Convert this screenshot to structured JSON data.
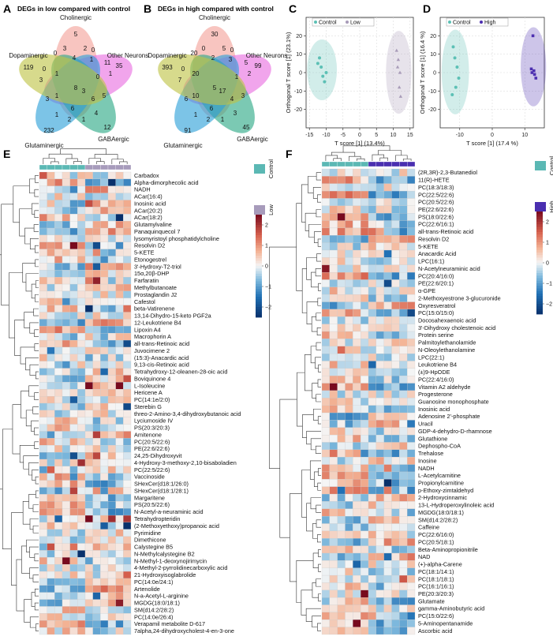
{
  "panels": {
    "A": {
      "label": "A",
      "title": "DEGs in low compared with control"
    },
    "B": {
      "label": "B",
      "title": "DEGs in high compared with control"
    },
    "C": {
      "label": "C"
    },
    "D": {
      "label": "D"
    },
    "E": {
      "label": "E"
    },
    "F": {
      "label": "F"
    }
  },
  "venn_sets": [
    "Cholinergic",
    "Other Neurons",
    "GABAergic",
    "Glutaminergic",
    "Dopaminergic"
  ],
  "venn_colors": [
    "#f4a19a",
    "#e86ee0",
    "#2aa884",
    "#2c9fd8",
    "#bfc445"
  ],
  "venn_A_numbers": [
    "5",
    "35",
    "12",
    "232",
    "119",
    "2",
    "0",
    "11",
    "1",
    "5",
    "4",
    "1",
    "2",
    "1",
    "3",
    "3",
    "0",
    "0",
    "3",
    "4",
    "1",
    "0",
    "6",
    "6",
    "8",
    "1",
    "1",
    "3"
  ],
  "venn_B_numbers": [
    "30",
    "99",
    "45",
    "91",
    "393",
    "5",
    "0",
    "5",
    "2",
    "3",
    "3",
    "1",
    "2",
    "1",
    "6",
    "7",
    "0",
    "20",
    "0",
    "2",
    "3",
    "1",
    "4",
    "6",
    "5",
    "10",
    "20",
    "17"
  ],
  "chart_data": [
    {
      "type": "scatter",
      "panel": "C",
      "xlabel": "T score [1] (13.4%)",
      "ylabel": "Orthogonal T score [1] (23.1%)",
      "xlim": [
        -16,
        16
      ],
      "ylim": [
        -30,
        30
      ],
      "xticks": [
        -15,
        -10,
        -5,
        0,
        5,
        10,
        15
      ],
      "yticks": [
        -20,
        -10,
        0,
        10,
        20
      ],
      "legend": [
        "Control",
        "Low"
      ],
      "series": [
        {
          "name": "Control",
          "color": "#5cc0b5",
          "x": [
            -12,
            -11.5,
            -11,
            -10.5,
            -10,
            -12.5
          ],
          "y": [
            8,
            3,
            -2,
            -5,
            0,
            5
          ]
        },
        {
          "name": "Low",
          "color": "#a89bb8",
          "x": [
            11,
            11.5,
            12,
            11.8,
            12.2,
            11.3
          ],
          "y": [
            12,
            7,
            0,
            -8,
            -13,
            3
          ]
        }
      ]
    },
    {
      "type": "scatter",
      "panel": "D",
      "xlabel": "T score [1] (17.4 %)",
      "ylabel": "Orthogonal T score [1] (16.4 %)",
      "xlim": [
        -16,
        16
      ],
      "ylim": [
        -30,
        30
      ],
      "xticks": [
        -10,
        0,
        10
      ],
      "yticks": [
        -20,
        -10,
        0,
        10,
        20
      ],
      "legend": [
        "Control",
        "High"
      ],
      "series": [
        {
          "name": "Control",
          "color": "#5cc0b5",
          "x": [
            -12,
            -11.5,
            -10.8,
            -10.3,
            -11.2,
            -12.3
          ],
          "y": [
            14,
            8,
            3,
            -3,
            -8,
            -12
          ]
        },
        {
          "name": "High",
          "color": "#4d2fb0",
          "x": [
            12.5,
            12,
            13,
            12.2,
            13.4,
            12.8
          ],
          "y": [
            20,
            2,
            -1,
            0,
            -3,
            1
          ]
        }
      ]
    },
    {
      "type": "heatmap",
      "panel": "E",
      "groups": [
        "Control",
        "Low"
      ],
      "group_colors": [
        "#5bb8b4",
        "#a79bbb"
      ],
      "columns_per_group": 6,
      "colorbar": {
        "min": -2.5,
        "max": 2.5,
        "ticks": [
          "2",
          "1",
          "0",
          "-1",
          "-2"
        ]
      },
      "rows": [
        "Carbadox",
        "Alpha-dimorphecolic acid",
        "NADH",
        "ACar(16:4)",
        "Inosinic acid",
        "ACar(20:2)",
        "ACar(18:2)",
        "Glutamylvaline",
        "Panaquinquecol 7",
        "lysomyristoyl phosphatidylcholine",
        "Resolvin D2",
        "5-KETE",
        "Etonogestrel",
        "3'-Hydroxy-T2-triol",
        "15α,20β-DHP",
        "Farfaratin",
        "Methylbutanoate",
        "Prostaglandin J2",
        "Cafestol",
        "beta-Vatirenene",
        "13,14-Dihydro-15-keto PGF2a",
        "12-Leukotriene B4",
        "Lipoxin A4",
        "Macrophorin A",
        "all-trans-Retinoic acid",
        "Juvocimene 2",
        "(15:3)-Anacardic acid",
        "9,13-cis-Retinoic acid",
        "Tetrahydroxy-12-oleanen-28-oic acid",
        "Boviquinone 4",
        "L-Isoleucine",
        "Hericene A",
        "PC(14:1e/2:0)",
        "Sterebin G",
        "threo-2-Amino-3,4-dihydroxybutanoic acid",
        "Lyciumoside IV",
        "PS(20:3/20:3)",
        "Amitenone",
        "PC(20:5/22:6)",
        "PE(22:6/22:6)",
        "24,25-Dihydroxyvit",
        "4-Hydroxy-3-methoxy-2,10-bisaboladien",
        "PC(22:5/22:6)",
        "Vaccinoside",
        "SHexCer(d18:1/26:0)",
        "SHexCer(d18:1/28:1)",
        "Margaritene",
        "PS(20:5/22:6)",
        "N-Acetyl-a-neuraminic acid",
        "Tetrahydropteridin",
        "(2-Methoxyethoxy)propanoic acid",
        "Pyrimidine",
        "Dimethicone",
        "Calystegine B5",
        "N-Methylcalystegine B2",
        "N-Methyl-1-deoxynojirimycin",
        "4-Methyl-2-pyrrolidinecarboxylic acid",
        "21-Hydroxyisoglabrolide",
        "PC(14:0e/24:1)",
        "Artenolide",
        "N-a-Acetyl-L-arginine",
        "MGDG(18:0/18:1)",
        "SM(d14:2/28:2)",
        "PC(14:0e/26:4)",
        "Verapamil metabolite D-617",
        "7alpha,24-dihydroxycholest-4-en-3-one"
      ]
    },
    {
      "type": "heatmap",
      "panel": "F",
      "groups": [
        "Control",
        "High"
      ],
      "group_colors": [
        "#5bb8b4",
        "#4a2fb0"
      ],
      "columns_per_group": 6,
      "colorbar": {
        "min": -2.5,
        "max": 2.5,
        "ticks": [
          "2",
          "1",
          "0",
          "-1",
          "-2"
        ]
      },
      "rows": [
        "(2R,3R)-2,3-Butanediol",
        "11(R)-HETE",
        "PC(18:3/18:3)",
        "PC(22:5/22:6)",
        "PC(20:5/22:6)",
        "PE(22:6/22:6)",
        "PS(18:0/22:6)",
        "PC(22:6/16:1)",
        "all-trans-Retinoic acid",
        "Resolvin D2",
        "5-KETE",
        "Anacardic Acid",
        "LPC(16:1)",
        "N-Acetylneuraminic acid",
        "PC(20:4/16:0)",
        "PE(22:6/20:1)",
        "α-GPE",
        "2-Methoxyestrone 3-glucuronide",
        "Oxyresveratrol",
        "PC(15:0/15:0)",
        "Docosahexaenoic acid",
        "3'-Dihydroxy cholestenoic acid",
        "Protein serine",
        "Palmitoylethanolamide",
        "N-Oleoylethanolamine",
        "LPC(22:1)",
        "Leukotriene B4",
        "(±)9-HpODE",
        "PC(22:4/16:0)",
        "Vitamin A2 aldehyde",
        "Progesterone",
        "Guanosine monophosphate",
        "Inosinic acid",
        "Adenosine 2'-phosphate",
        "Uracil",
        "GDP-4-dehydro-D-rhamnose",
        "Glutathione",
        "Dephospho-CoA",
        "Trehalose",
        "Inosine",
        "NADH",
        "L-Acetylcarnitine",
        "Propionylcarnitine",
        "p-Ethoxy-zimtaldehyd",
        "2-Hydroxycinnamic",
        "13-L-Hydroperoxylinoleic acid",
        "MGDG(18:0/18:1)",
        "SM(d14:2/28:2)",
        "Caffeine",
        "PC(22:6/16:0)",
        "PC(20:5/18:1)",
        "Beta-Aminopropionitrile",
        "NAD",
        "(+)-alpha-Carene",
        "PC(18:1/14:1)",
        "PC(18:1/18:1)",
        "PC(16:1/16:1)",
        "PE(20:3/20:3)",
        "Glutamate",
        "gamma-Aminobutyric acid",
        "PC(15:0/22:6)",
        "5-Aminopentanamide",
        "Ascorbic acid"
      ]
    }
  ]
}
